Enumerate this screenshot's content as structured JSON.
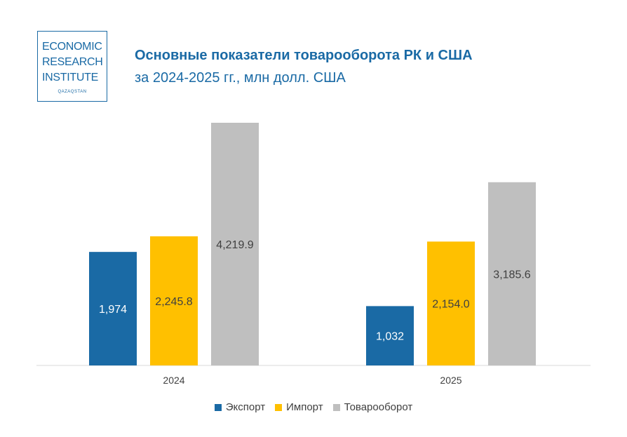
{
  "logo": {
    "line1": "ECONOMIC",
    "line2": "RESEARCH",
    "line3": "INSTITUTE",
    "line4": "QAZAQSTAN"
  },
  "colors": {
    "accent": "#1a6aa5",
    "export": "#1a6aa5",
    "import": "#ffc000",
    "turnover": "#bfbfbf"
  },
  "chart_data": {
    "type": "bar",
    "title": "Основные показатели товарооборота РК и США",
    "subtitle": "за 2024-2025 гг., млн долл. США",
    "categories": [
      "2024",
      "2025"
    ],
    "series": [
      {
        "name": "Экспорт",
        "values": [
          1974,
          1032
        ],
        "labels": [
          "1,974",
          "1,032"
        ],
        "color": "#1a6aa5",
        "label_color": "#ffffff"
      },
      {
        "name": "Импорт",
        "values": [
          2245.8,
          2154.0
        ],
        "labels": [
          "2,245.8",
          "2,154.0"
        ],
        "color": "#ffc000",
        "label_color": "#404040"
      },
      {
        "name": "Товарооборот",
        "values": [
          4219.9,
          3185.6
        ],
        "labels": [
          "4,219.9",
          "3,185.6"
        ],
        "color": "#bfbfbf",
        "label_color": "#404040"
      }
    ],
    "ylim": [
      0,
      4219.9
    ],
    "grid": false,
    "legend": "bottom"
  }
}
